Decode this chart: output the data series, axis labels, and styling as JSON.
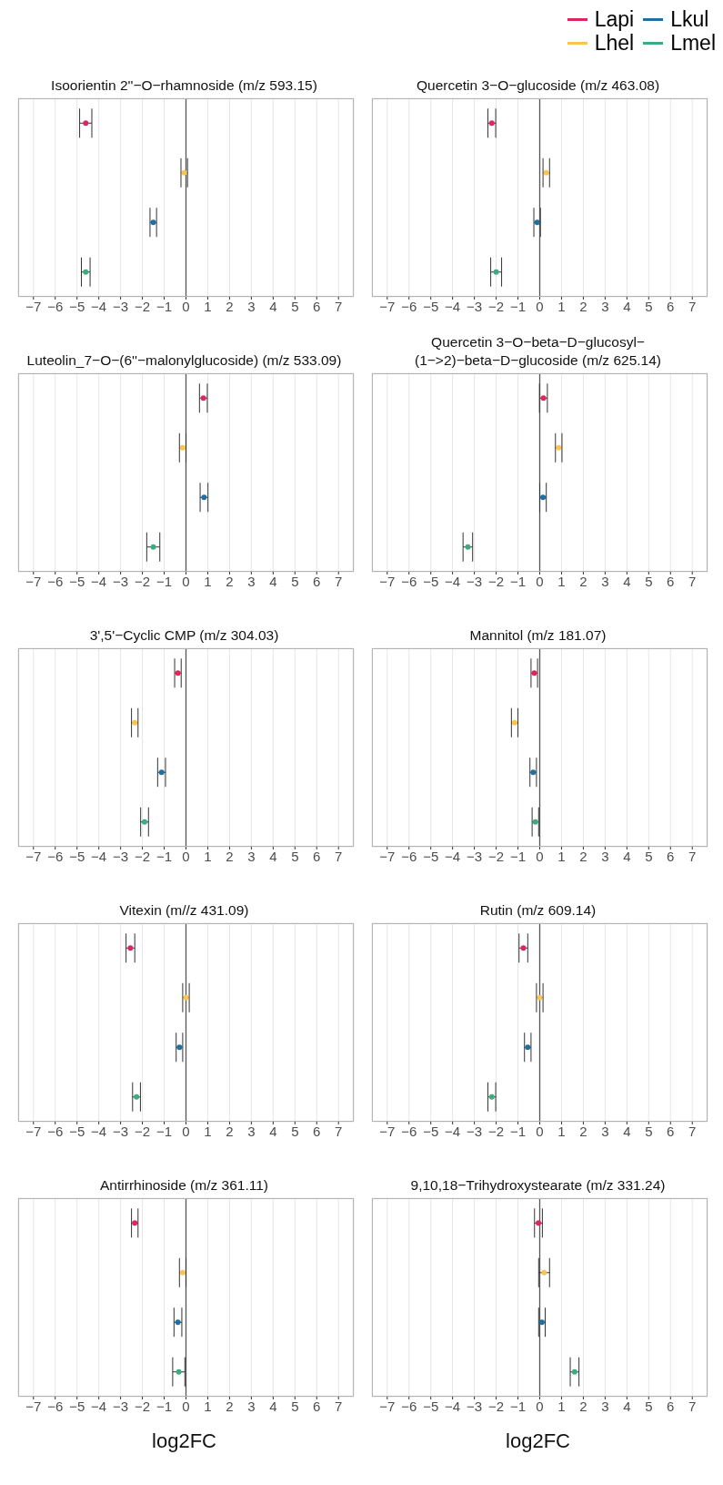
{
  "chart_data": [
    {
      "type": "scatter",
      "title": "Isoorientin 2''−O−rhamnoside (m/z 593.15)",
      "orientation": "horizontal",
      "categories": [
        null,
        null,
        null,
        null
      ],
      "marker": "circle",
      "grid": true,
      "tick_labels": "x",
      "legend": "top right",
      "xlim": [
        -7.7,
        7.7
      ],
      "xticks": [
        -7,
        -6,
        -5,
        -4,
        -3,
        -2,
        -1,
        0,
        1,
        2,
        3,
        4,
        5,
        6,
        7
      ],
      "ref_lines": [
        {
          "axis": "x",
          "value": 0
        }
      ],
      "series": [
        {
          "name": "Lapi",
          "color": "#e0245e",
          "values": [
            -4.6,
            null,
            null,
            null
          ],
          "errors": [
            0.28,
            null,
            null,
            null
          ]
        },
        {
          "name": "Lhel",
          "color": "#f9c54e",
          "values": [
            null,
            -0.08,
            null,
            null
          ],
          "errors": [
            null,
            0.15,
            null,
            null
          ]
        },
        {
          "name": "Lkul",
          "color": "#1f6fa0",
          "values": [
            null,
            null,
            -1.5,
            null
          ],
          "errors": [
            null,
            null,
            0.15,
            null
          ]
        },
        {
          "name": "Lmel",
          "color": "#3dab7f",
          "values": [
            null,
            null,
            null,
            -4.6
          ],
          "errors": [
            null,
            null,
            null,
            0.2
          ]
        }
      ]
    },
    {
      "type": "scatter",
      "title": "Quercetin 3−O−glucoside (m/z 463.08)",
      "orientation": "horizontal",
      "categories": [
        null,
        null,
        null,
        null
      ],
      "marker": "circle",
      "grid": true,
      "tick_labels": "x",
      "xlim": [
        -7.7,
        7.7
      ],
      "xticks": [
        -7,
        -6,
        -5,
        -4,
        -3,
        -2,
        -1,
        0,
        1,
        2,
        3,
        4,
        5,
        6,
        7
      ],
      "ref_lines": [
        {
          "axis": "x",
          "value": 0
        }
      ],
      "series": [
        {
          "color": "#e0245e",
          "values": [
            -2.2,
            null,
            null,
            null
          ],
          "errors": [
            0.18,
            null,
            null,
            null
          ]
        },
        {
          "color": "#f9c54e",
          "values": [
            null,
            0.3,
            null,
            null
          ],
          "errors": [
            null,
            0.15,
            null,
            null
          ]
        },
        {
          "color": "#1f6fa0",
          "values": [
            null,
            null,
            -0.12,
            null
          ],
          "errors": [
            null,
            null,
            0.15,
            null
          ]
        },
        {
          "color": "#3dab7f",
          "values": [
            null,
            null,
            null,
            -2.0
          ],
          "errors": [
            null,
            null,
            null,
            0.25
          ]
        }
      ]
    },
    {
      "type": "scatter",
      "title": "Luteolin_7−O−(6''−malonylglucoside) (m/z 533.09)",
      "orientation": "horizontal",
      "categories": [
        null,
        null,
        null,
        null
      ],
      "marker": "circle",
      "grid": true,
      "tick_labels": "x",
      "xlim": [
        -7.7,
        7.7
      ],
      "xticks": [
        -7,
        -6,
        -5,
        -4,
        -3,
        -2,
        -1,
        0,
        1,
        2,
        3,
        4,
        5,
        6,
        7
      ],
      "ref_lines": [
        {
          "axis": "x",
          "value": 0
        }
      ],
      "series": [
        {
          "color": "#e0245e",
          "values": [
            0.8,
            null,
            null,
            null
          ],
          "errors": [
            0.18,
            null,
            null,
            null
          ]
        },
        {
          "color": "#f9c54e",
          "values": [
            null,
            -0.15,
            null,
            null
          ],
          "errors": [
            null,
            0.15,
            null,
            null
          ]
        },
        {
          "color": "#1f6fa0",
          "values": [
            null,
            null,
            0.83,
            null
          ],
          "errors": [
            null,
            null,
            0.18,
            null
          ]
        },
        {
          "color": "#3dab7f",
          "values": [
            null,
            null,
            null,
            -1.5
          ],
          "errors": [
            null,
            null,
            null,
            0.3
          ]
        }
      ]
    },
    {
      "type": "scatter",
      "title": "Quercetin 3−O−beta−D−glucosyl−\n(1−>2)−beta−D−glucoside (m/z 625.14)",
      "orientation": "horizontal",
      "categories": [
        null,
        null,
        null,
        null
      ],
      "marker": "circle",
      "grid": true,
      "tick_labels": "x",
      "xlim": [
        -7.7,
        7.7
      ],
      "xticks": [
        -7,
        -6,
        -5,
        -4,
        -3,
        -2,
        -1,
        0,
        1,
        2,
        3,
        4,
        5,
        6,
        7
      ],
      "ref_lines": [
        {
          "axis": "x",
          "value": 0
        }
      ],
      "series": [
        {
          "color": "#e0245e",
          "values": [
            0.17,
            null,
            null,
            null
          ],
          "errors": [
            0.18,
            null,
            null,
            null
          ]
        },
        {
          "color": "#f9c54e",
          "values": [
            null,
            0.87,
            null,
            null
          ],
          "errors": [
            null,
            0.15,
            null,
            null
          ]
        },
        {
          "color": "#1f6fa0",
          "values": [
            null,
            null,
            0.15,
            null
          ],
          "errors": [
            null,
            null,
            0.15,
            null
          ]
        },
        {
          "color": "#3dab7f",
          "values": [
            null,
            null,
            null,
            -3.3
          ],
          "errors": [
            null,
            null,
            null,
            0.22
          ]
        }
      ]
    },
    {
      "type": "scatter",
      "title": "3',5'−Cyclic CMP (m/z 304.03)",
      "orientation": "horizontal",
      "categories": [
        null,
        null,
        null,
        null
      ],
      "marker": "circle",
      "grid": true,
      "tick_labels": "x",
      "xlim": [
        -7.7,
        7.7
      ],
      "xticks": [
        -7,
        -6,
        -5,
        -4,
        -3,
        -2,
        -1,
        0,
        1,
        2,
        3,
        4,
        5,
        6,
        7
      ],
      "ref_lines": [
        {
          "axis": "x",
          "value": 0
        }
      ],
      "series": [
        {
          "color": "#e0245e",
          "values": [
            -0.37,
            null,
            null,
            null
          ],
          "errors": [
            0.15,
            null,
            null,
            null
          ]
        },
        {
          "color": "#f9c54e",
          "values": [
            null,
            -2.35,
            null,
            null
          ],
          "errors": [
            null,
            0.15,
            null,
            null
          ]
        },
        {
          "color": "#1f6fa0",
          "values": [
            null,
            null,
            -1.12,
            null
          ],
          "errors": [
            null,
            null,
            0.18,
            null
          ]
        },
        {
          "color": "#3dab7f",
          "values": [
            null,
            null,
            null,
            -1.9
          ],
          "errors": [
            null,
            null,
            null,
            0.18
          ]
        }
      ]
    },
    {
      "type": "scatter",
      "title": "Mannitol (m/z 181.07)",
      "orientation": "horizontal",
      "categories": [
        null,
        null,
        null,
        null
      ],
      "marker": "circle",
      "grid": true,
      "tick_labels": "x",
      "xlim": [
        -7.7,
        7.7
      ],
      "xticks": [
        -7,
        -6,
        -5,
        -4,
        -3,
        -2,
        -1,
        0,
        1,
        2,
        3,
        4,
        5,
        6,
        7
      ],
      "ref_lines": [
        {
          "axis": "x",
          "value": 0
        }
      ],
      "series": [
        {
          "color": "#e0245e",
          "values": [
            -0.25,
            null,
            null,
            null
          ],
          "errors": [
            0.15,
            null,
            null,
            null
          ]
        },
        {
          "color": "#f9c54e",
          "values": [
            null,
            -1.15,
            null,
            null
          ],
          "errors": [
            null,
            0.15,
            null,
            null
          ]
        },
        {
          "color": "#1f6fa0",
          "values": [
            null,
            null,
            -0.3,
            null
          ],
          "errors": [
            null,
            null,
            0.15,
            null
          ]
        },
        {
          "color": "#3dab7f",
          "values": [
            null,
            null,
            null,
            -0.2
          ],
          "errors": [
            null,
            null,
            null,
            0.15
          ]
        }
      ]
    },
    {
      "type": "scatter",
      "title": "Vitexin (m//z 431.09)",
      "orientation": "horizontal",
      "categories": [
        null,
        null,
        null,
        null
      ],
      "marker": "circle",
      "grid": true,
      "tick_labels": "x",
      "xlim": [
        -7.7,
        7.7
      ],
      "xticks": [
        -7,
        -6,
        -5,
        -4,
        -3,
        -2,
        -1,
        0,
        1,
        2,
        3,
        4,
        5,
        6,
        7
      ],
      "ref_lines": [
        {
          "axis": "x",
          "value": 0
        }
      ],
      "series": [
        {
          "color": "#e0245e",
          "values": [
            -2.55,
            null,
            null,
            null
          ],
          "errors": [
            0.2,
            null,
            null,
            null
          ]
        },
        {
          "color": "#f9c54e",
          "values": [
            null,
            0.0,
            null,
            null
          ],
          "errors": [
            null,
            0.15,
            null,
            null
          ]
        },
        {
          "color": "#1f6fa0",
          "values": [
            null,
            null,
            -0.3,
            null
          ],
          "errors": [
            null,
            null,
            0.15,
            null
          ]
        },
        {
          "color": "#3dab7f",
          "values": [
            null,
            null,
            null,
            -2.27
          ],
          "errors": [
            null,
            null,
            null,
            0.18
          ]
        }
      ]
    },
    {
      "type": "scatter",
      "title": "Rutin (m/z 609.14)",
      "orientation": "horizontal",
      "categories": [
        null,
        null,
        null,
        null
      ],
      "marker": "circle",
      "grid": true,
      "tick_labels": "x",
      "xlim": [
        -7.7,
        7.7
      ],
      "xticks": [
        -7,
        -6,
        -5,
        -4,
        -3,
        -2,
        -1,
        0,
        1,
        2,
        3,
        4,
        5,
        6,
        7
      ],
      "ref_lines": [
        {
          "axis": "x",
          "value": 0
        }
      ],
      "series": [
        {
          "color": "#e0245e",
          "values": [
            -0.75,
            null,
            null,
            null
          ],
          "errors": [
            0.2,
            null,
            null,
            null
          ]
        },
        {
          "color": "#f9c54e",
          "values": [
            null,
            0.0,
            null,
            null
          ],
          "errors": [
            null,
            0.15,
            null,
            null
          ]
        },
        {
          "color": "#1f6fa0",
          "values": [
            null,
            null,
            -0.55,
            null
          ],
          "errors": [
            null,
            null,
            0.15,
            null
          ]
        },
        {
          "color": "#3dab7f",
          "values": [
            null,
            null,
            null,
            -2.2
          ],
          "errors": [
            null,
            null,
            null,
            0.18
          ]
        }
      ]
    },
    {
      "type": "scatter",
      "title": "Antirrhinoside (m/z 361.11)",
      "xlabel": "log2FC",
      "orientation": "horizontal",
      "categories": [
        null,
        null,
        null,
        null
      ],
      "marker": "circle",
      "grid": true,
      "tick_labels": "x",
      "xlim": [
        -7.7,
        7.7
      ],
      "xticks": [
        -7,
        -6,
        -5,
        -4,
        -3,
        -2,
        -1,
        0,
        1,
        2,
        3,
        4,
        5,
        6,
        7
      ],
      "ref_lines": [
        {
          "axis": "x",
          "value": 0
        }
      ],
      "series": [
        {
          "color": "#e0245e",
          "values": [
            -2.35,
            null,
            null,
            null
          ],
          "errors": [
            0.15,
            null,
            null,
            null
          ]
        },
        {
          "color": "#f9c54e",
          "values": [
            null,
            -0.15,
            null,
            null
          ],
          "errors": [
            null,
            0.15,
            null,
            null
          ]
        },
        {
          "color": "#1f6fa0",
          "values": [
            null,
            null,
            -0.37,
            null
          ],
          "errors": [
            null,
            null,
            0.18,
            null
          ]
        },
        {
          "color": "#3dab7f",
          "values": [
            null,
            null,
            null,
            -0.33
          ],
          "errors": [
            null,
            null,
            null,
            0.28
          ]
        }
      ]
    },
    {
      "type": "scatter",
      "title": "9,10,18−Trihydroxystearate (m/z 331.24)",
      "xlabel": "log2FC",
      "orientation": "horizontal",
      "categories": [
        null,
        null,
        null,
        null
      ],
      "marker": "circle",
      "grid": true,
      "tick_labels": "x",
      "xlim": [
        -7.7,
        7.7
      ],
      "xticks": [
        -7,
        -6,
        -5,
        -4,
        -3,
        -2,
        -1,
        0,
        1,
        2,
        3,
        4,
        5,
        6,
        7
      ],
      "ref_lines": [
        {
          "axis": "x",
          "value": 0
        }
      ],
      "series": [
        {
          "color": "#e0245e",
          "values": [
            -0.06,
            null,
            null,
            null
          ],
          "errors": [
            0.18,
            null,
            null,
            null
          ]
        },
        {
          "color": "#f9c54e",
          "values": [
            null,
            0.2,
            null,
            null
          ],
          "errors": [
            null,
            0.25,
            null,
            null
          ]
        },
        {
          "color": "#1f6fa0",
          "values": [
            null,
            null,
            0.1,
            null
          ],
          "errors": [
            null,
            null,
            0.15,
            null
          ]
        },
        {
          "color": "#3dab7f",
          "values": [
            null,
            null,
            null,
            1.6
          ],
          "errors": [
            null,
            null,
            null,
            0.2
          ]
        }
      ]
    }
  ]
}
